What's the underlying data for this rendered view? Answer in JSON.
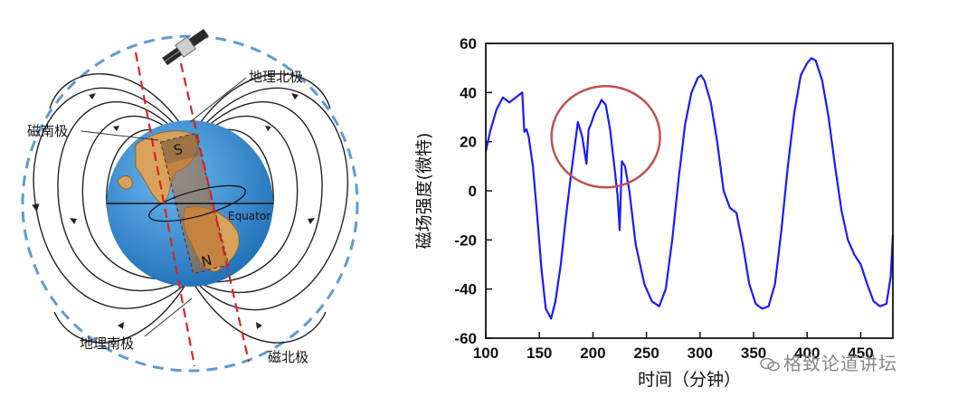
{
  "diagram": {
    "labels": {
      "geo_north": "地理北极",
      "mag_south": "磁南极",
      "geo_south": "地理南极",
      "mag_north": "磁北极",
      "equator": "Equator",
      "s_pole": "S",
      "n_pole": "N"
    },
    "colors": {
      "ocean": "#3a8fd6",
      "land": "#d8a25a",
      "dashed_circle": "#5b9bd5",
      "axis_red": "#e02020"
    }
  },
  "chart_data": {
    "type": "line",
    "title": "",
    "xlabel": "时间（分钟）",
    "ylabel": "磁场强度(微特)",
    "xlim": [
      100,
      480
    ],
    "ylim": [
      -60,
      60
    ],
    "xticks": [
      100,
      150,
      200,
      250,
      300,
      350,
      400,
      450
    ],
    "yticks": [
      -60,
      -40,
      -20,
      0,
      20,
      40,
      60
    ],
    "series": [
      {
        "name": "磁场强度",
        "color": "#1a1aff",
        "x": [
          100,
          104,
          110,
          116,
          122,
          128,
          134,
          136,
          138,
          140,
          144,
          148,
          152,
          156,
          161,
          165,
          170,
          175,
          180,
          186,
          190,
          194,
          196,
          198,
          202,
          206,
          208,
          210,
          212,
          216,
          220,
          223,
          225,
          227,
          230,
          234,
          240,
          248,
          255,
          262,
          268,
          274,
          280,
          286,
          292,
          298,
          301,
          304,
          310,
          316,
          322,
          328,
          334,
          340,
          346,
          352,
          358,
          364,
          370,
          376,
          382,
          388,
          394,
          400,
          404,
          408,
          414,
          420,
          426,
          432,
          438,
          444,
          450,
          456,
          462,
          468,
          474,
          478,
          480
        ],
        "y": [
          16,
          24,
          33,
          38,
          36,
          38,
          40,
          24,
          25,
          22,
          10,
          -10,
          -32,
          -48,
          -52,
          -45,
          -30,
          -10,
          8,
          28,
          22,
          11,
          25,
          27,
          32,
          35,
          37,
          36,
          35,
          25,
          10,
          -2,
          -16,
          12,
          10,
          0,
          -22,
          -38,
          -45,
          -47,
          -40,
          -20,
          5,
          27,
          40,
          46,
          47,
          45,
          36,
          20,
          0,
          -7,
          -9,
          -22,
          -38,
          -46,
          -48,
          -47,
          -38,
          -16,
          10,
          32,
          47,
          52,
          54,
          53,
          45,
          30,
          10,
          -8,
          -20,
          -26,
          -30,
          -38,
          -45,
          -47,
          -46,
          -35,
          -18
        ]
      }
    ],
    "annotations": [
      {
        "type": "ellipse",
        "color": "#c0504d",
        "center_data": [
          212,
          22
        ],
        "note": "highlighted region"
      }
    ]
  },
  "watermark": {
    "text": "格致论道讲坛"
  }
}
